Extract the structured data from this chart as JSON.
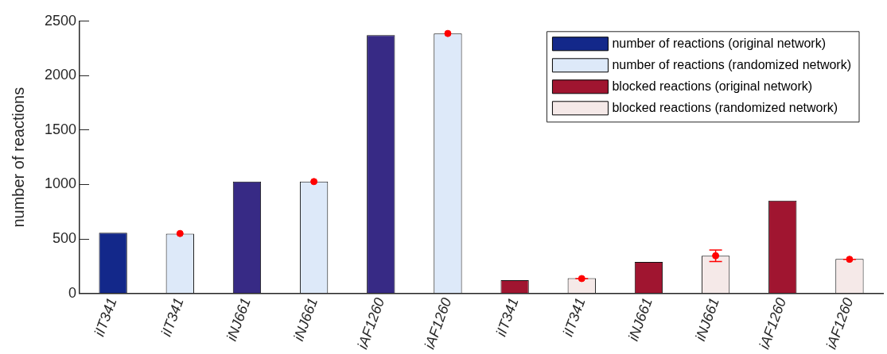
{
  "chart_data": {
    "type": "bar",
    "ylabel": "number of reactions",
    "categories": [
      "iIT341",
      "iIT341",
      "iNJ661",
      "iNJ661",
      "iAF1260",
      "iAF1260",
      "iIT341",
      "iIT341",
      "iNJ661",
      "iNJ661",
      "iAF1260",
      "iAF1260"
    ],
    "series": [
      {
        "name": "number of reactions (original network)",
        "color": "#13288a",
        "colors": [
          "#13288a",
          null,
          "#372a85",
          null,
          "#372a85",
          null,
          null,
          null,
          null,
          null,
          null,
          null
        ],
        "values": [
          556,
          null,
          1027,
          null,
          2373,
          null,
          null,
          null,
          null,
          null,
          null,
          null
        ]
      },
      {
        "name": "number of reactions (randomized network)",
        "color": "#dde9f9",
        "values": [
          null,
          547,
          null,
          1027,
          null,
          2388,
          null,
          null,
          null,
          null,
          null,
          null
        ]
      },
      {
        "name": "blocked reactions (original network)",
        "color": "#a01530",
        "values": [
          null,
          null,
          null,
          null,
          null,
          null,
          122,
          null,
          289,
          null,
          853,
          null
        ]
      },
      {
        "name": "blocked reactions (randomized network)",
        "color": "#f5e9e8",
        "values": [
          null,
          null,
          null,
          null,
          null,
          null,
          null,
          140,
          null,
          346,
          null,
          316
        ]
      },
      {
        "type": "scatter",
        "color": "#ff0000",
        "values": [
          null,
          550,
          null,
          1027,
          null,
          2388,
          null,
          136,
          null,
          346,
          null,
          313
        ],
        "errors": [
          null,
          null,
          null,
          null,
          null,
          null,
          null,
          0,
          null,
          53,
          null,
          0
        ]
      }
    ],
    "ylim": [
      0,
      2500
    ],
    "yticks": [
      0,
      500,
      1000,
      1500,
      2000,
      2500
    ],
    "grid": false,
    "legend": "top right",
    "marker": "circle"
  }
}
